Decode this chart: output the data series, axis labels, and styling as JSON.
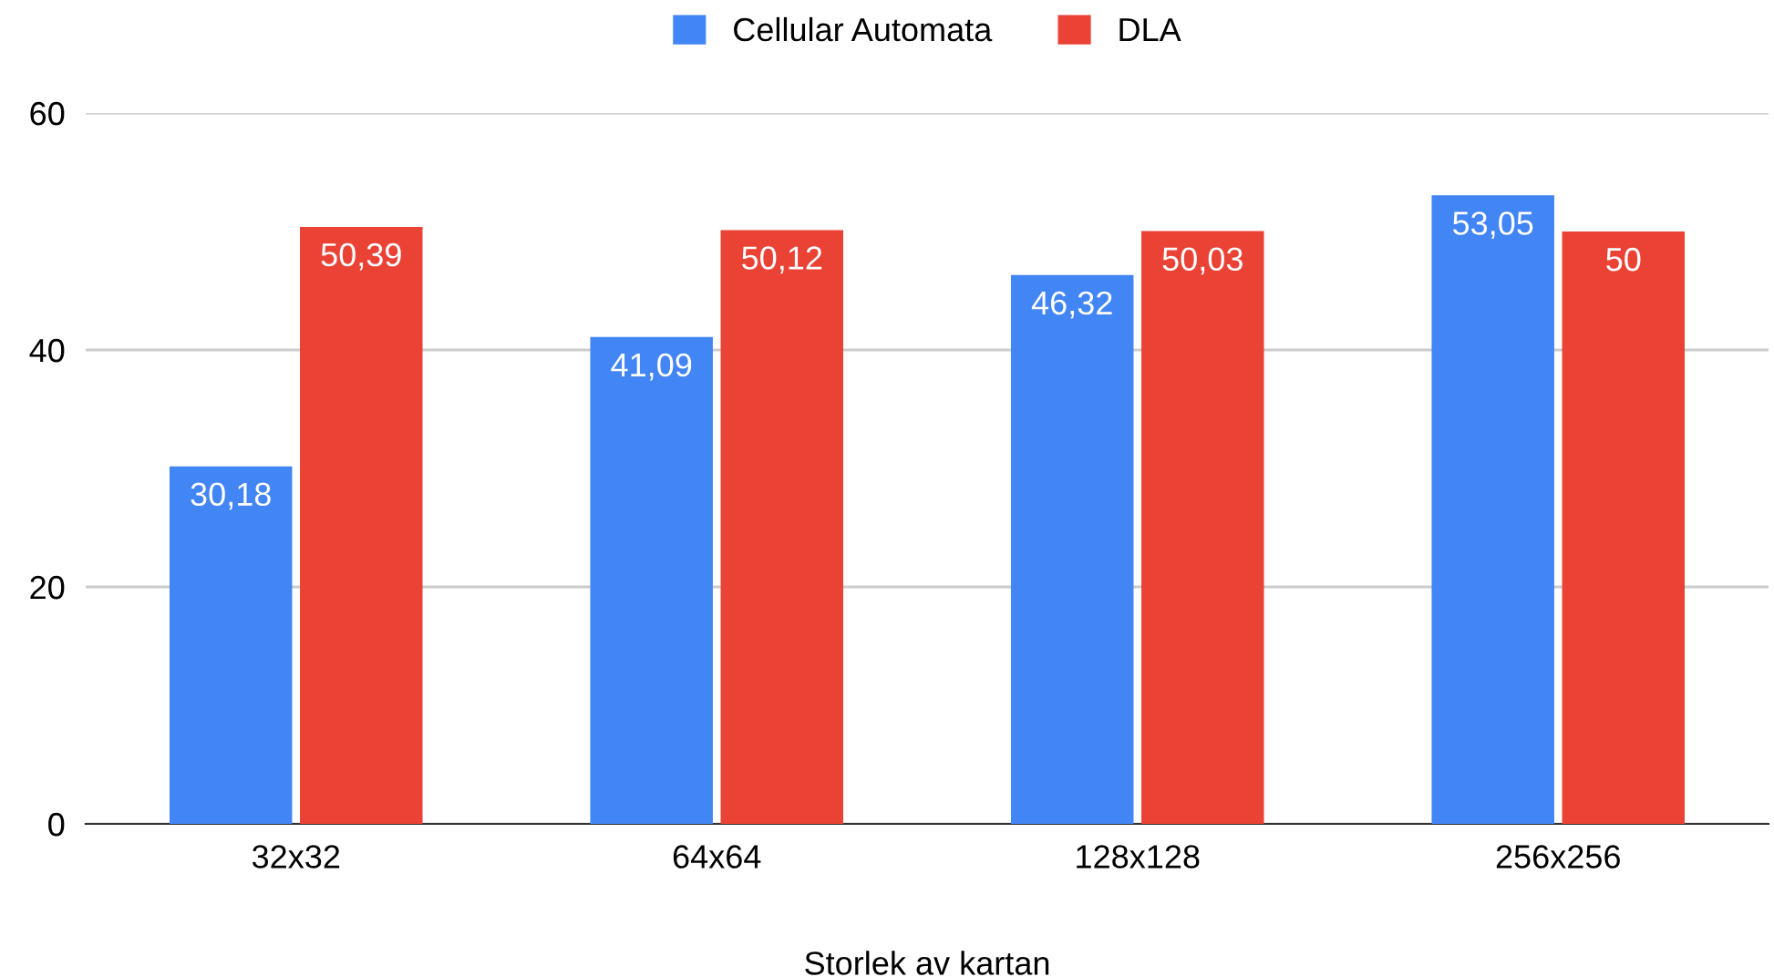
{
  "chart_data": {
    "type": "bar",
    "xlabel": "Storlek av kartan",
    "categories": [
      "32x32",
      "64x64",
      "128x128",
      "256x256"
    ],
    "series": [
      {
        "name": "Cellular Automata",
        "color": "#4285f4",
        "values": [
          30.18,
          41.09,
          46.32,
          53.05
        ],
        "value_labels": [
          "30,18",
          "41,09",
          "46,32",
          "53,05"
        ]
      },
      {
        "name": "DLA",
        "color": "#ea4335",
        "values": [
          50.39,
          50.12,
          50.03,
          50
        ],
        "value_labels": [
          "50,39",
          "50,12",
          "50,03",
          "50"
        ]
      }
    ],
    "ylim": [
      0,
      60
    ],
    "yticks": [
      0,
      20,
      40,
      60
    ],
    "grid": "y",
    "legend": "top"
  }
}
